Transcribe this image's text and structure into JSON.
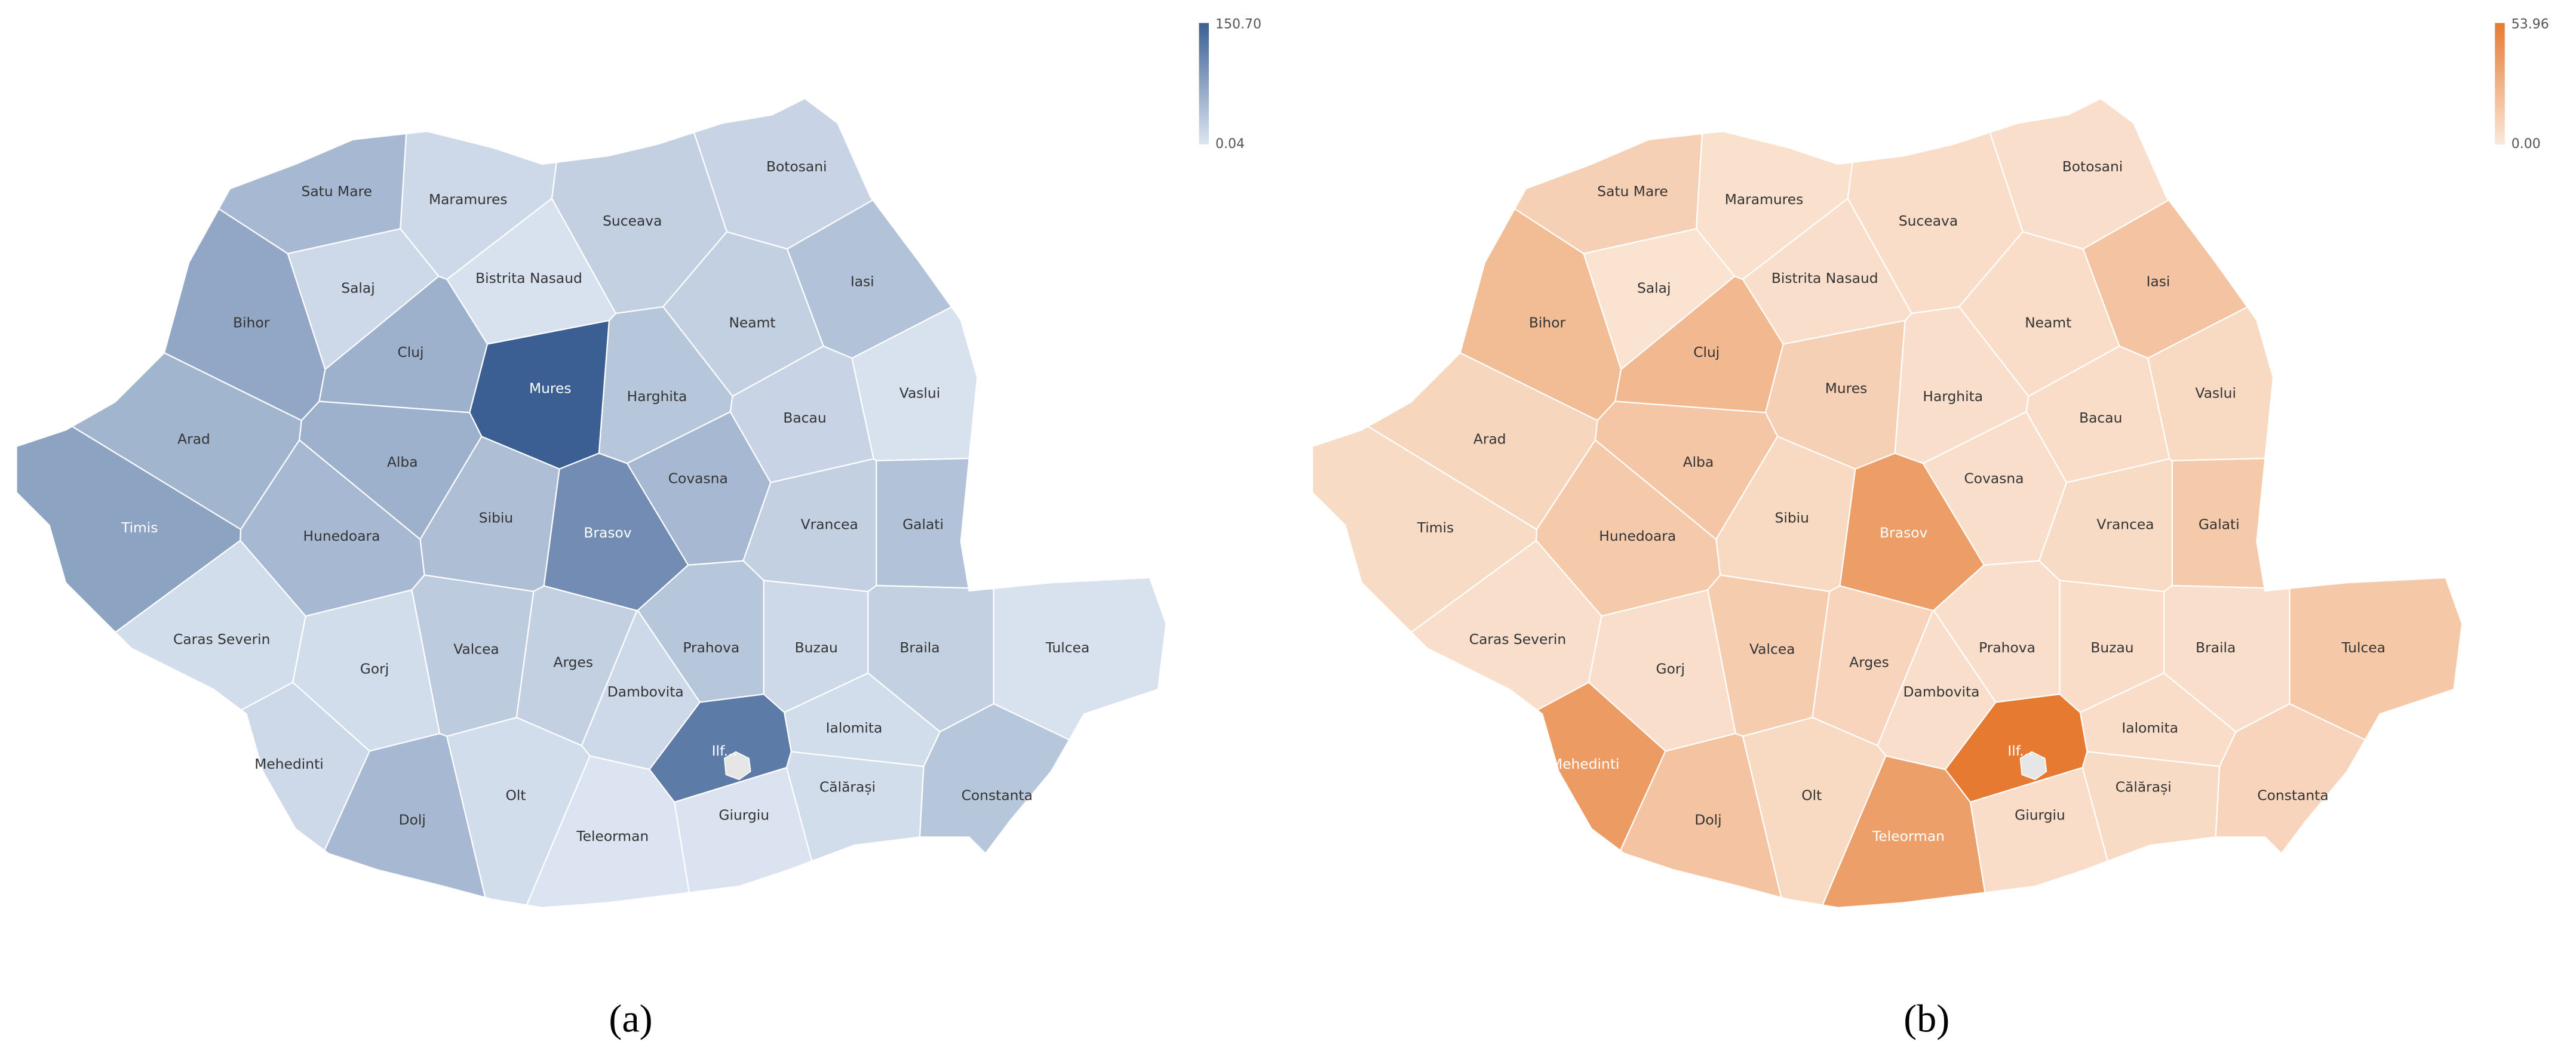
{
  "maps": [
    {
      "caption": "(a)",
      "legend": {
        "max": {
          "value": 150.7,
          "label": "150.70"
        },
        "min": 0.04
      },
      "color_range": [
        "#dde6f1",
        "#3b5f93"
      ],
      "counties": [
        {
          "name": "Satu Mare",
          "value": 50
        },
        {
          "name": "Maramures",
          "value": 15
        },
        {
          "name": "Botosani",
          "value": 20
        },
        {
          "name": "Suceava",
          "value": 25
        },
        {
          "name": "Salaj",
          "value": 15
        },
        {
          "name": "Bistrita Nasaud",
          "value": 5
        },
        {
          "name": "Iasi",
          "value": 40
        },
        {
          "name": "Bihor",
          "value": 70
        },
        {
          "name": "Cluj",
          "value": 60
        },
        {
          "name": "Neamt",
          "value": 25
        },
        {
          "name": "Mures",
          "value": 150.7
        },
        {
          "name": "Harghita",
          "value": 35
        },
        {
          "name": "Bacau",
          "value": 20
        },
        {
          "name": "Vaslui",
          "value": 5
        },
        {
          "name": "Arad",
          "value": 55
        },
        {
          "name": "Alba",
          "value": 60
        },
        {
          "name": "Covasna",
          "value": 50
        },
        {
          "name": "Sibiu",
          "value": 45
        },
        {
          "name": "Brasov",
          "value": 100
        },
        {
          "name": "Galati",
          "value": 40
        },
        {
          "name": "Vrancea",
          "value": 25
        },
        {
          "name": "Timis",
          "value": 75
        },
        {
          "name": "Hunedoara",
          "value": 50
        },
        {
          "name": "Caras Severin",
          "value": 10
        },
        {
          "name": "Gorj",
          "value": 10
        },
        {
          "name": "Valcea",
          "value": 30
        },
        {
          "name": "Arges",
          "value": 25
        },
        {
          "name": "Prahova",
          "value": 35
        },
        {
          "name": "Buzau",
          "value": 15
        },
        {
          "name": "Braila",
          "value": 25
        },
        {
          "name": "Tulcea",
          "value": 5
        },
        {
          "name": "Dambovita",
          "value": 15
        },
        {
          "name": "Ialomita",
          "value": 10
        },
        {
          "name": "Ilf...",
          "value": 120
        },
        {
          "name": "Mehedinti",
          "value": 15
        },
        {
          "name": "Olt",
          "value": 10
        },
        {
          "name": "Dolj",
          "value": 50
        },
        {
          "name": "Călărași",
          "value": 10
        },
        {
          "name": "Constanta",
          "value": 35
        },
        {
          "name": "Giurgiu",
          "value": 3
        },
        {
          "name": "Teleorman",
          "value": 2
        }
      ]
    },
    {
      "caption": "(b)",
      "legend": {
        "max": 53.96,
        "min": {
          "value": 0,
          "label": "0.00"
        }
      },
      "color_range": [
        "#fbe9db",
        "#e67a30"
      ],
      "counties": [
        {
          "name": "Satu Mare",
          "value": 12
        },
        {
          "name": "Maramures",
          "value": 4
        },
        {
          "name": "Botosani",
          "value": 5
        },
        {
          "name": "Suceava",
          "value": 6
        },
        {
          "name": "Salaj",
          "value": 3
        },
        {
          "name": "Bistrita Nasaud",
          "value": 5
        },
        {
          "name": "Iasi",
          "value": 18
        },
        {
          "name": "Bihor",
          "value": 22
        },
        {
          "name": "Cluj",
          "value": 24
        },
        {
          "name": "Neamt",
          "value": 6
        },
        {
          "name": "Mures",
          "value": 12
        },
        {
          "name": "Harghita",
          "value": 5
        },
        {
          "name": "Bacau",
          "value": 6
        },
        {
          "name": "Vaslui",
          "value": 8
        },
        {
          "name": "Arad",
          "value": 9
        },
        {
          "name": "Alba",
          "value": 17
        },
        {
          "name": "Covasna",
          "value": 5
        },
        {
          "name": "Sibiu",
          "value": 8
        },
        {
          "name": "Brasov",
          "value": 37
        },
        {
          "name": "Galati",
          "value": 15
        },
        {
          "name": "Vrancea",
          "value": 7
        },
        {
          "name": "Timis",
          "value": 7
        },
        {
          "name": "Hunedoara",
          "value": 15
        },
        {
          "name": "Caras Severin",
          "value": 5
        },
        {
          "name": "Gorj",
          "value": 5
        },
        {
          "name": "Valcea",
          "value": 14
        },
        {
          "name": "Arges",
          "value": 10
        },
        {
          "name": "Prahova",
          "value": 5
        },
        {
          "name": "Buzau",
          "value": 6
        },
        {
          "name": "Braila",
          "value": 5
        },
        {
          "name": "Tulcea",
          "value": 16
        },
        {
          "name": "Dambovita",
          "value": 5
        },
        {
          "name": "Ialomita",
          "value": 6
        },
        {
          "name": "Ilf...",
          "value": 53.96
        },
        {
          "name": "Mehedinti",
          "value": 38
        },
        {
          "name": "Olt",
          "value": 8
        },
        {
          "name": "Dolj",
          "value": 18
        },
        {
          "name": "Călărași",
          "value": 7
        },
        {
          "name": "Constanta",
          "value": 10
        },
        {
          "name": "Giurgiu",
          "value": 6
        },
        {
          "name": "Teleorman",
          "value": 36
        }
      ]
    }
  ]
}
